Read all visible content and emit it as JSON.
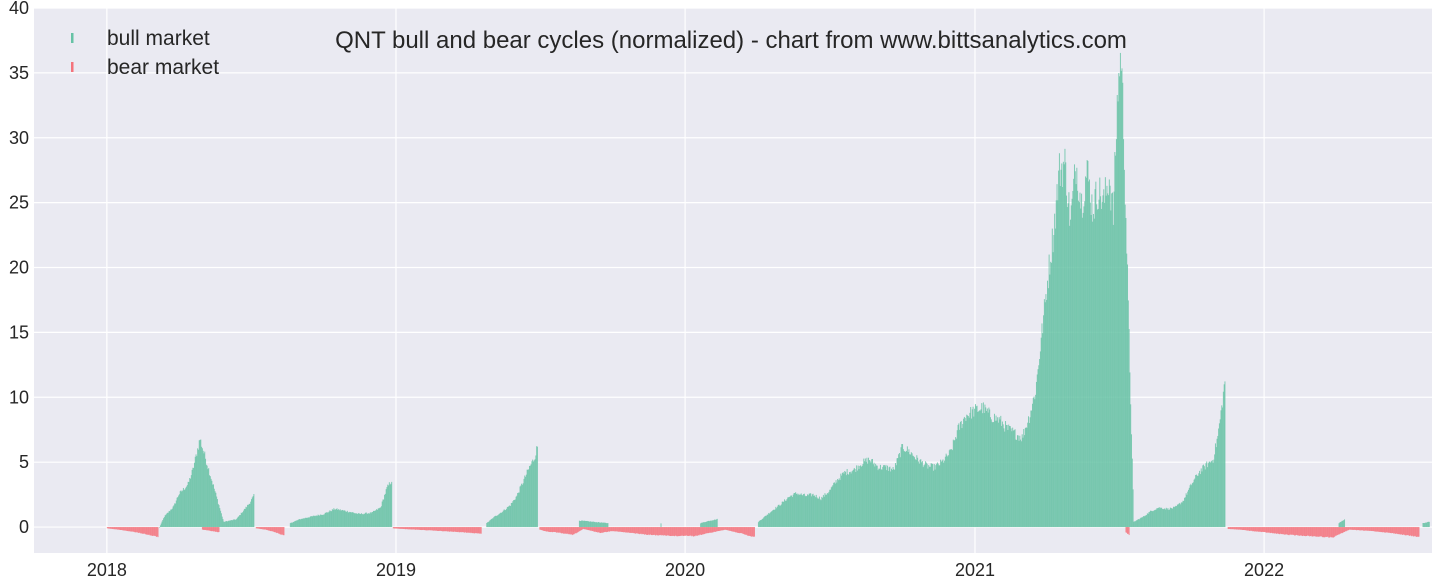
{
  "chart_data": {
    "type": "bar",
    "title": "QNT bull and bear cycles (normalized)  - chart from www.bittsanalytics.com",
    "xlabel": "",
    "ylabel": "",
    "xlim": [
      "2017-10-01",
      "2022-08-01"
    ],
    "ylim": [
      -2,
      40
    ],
    "y_ticks": [
      0,
      5,
      10,
      15,
      20,
      25,
      30,
      35,
      40
    ],
    "x_ticks": [
      {
        "date": "2018-01-01",
        "label": "2018"
      },
      {
        "date": "2019-01-01",
        "label": "2019"
      },
      {
        "date": "2020-01-01",
        "label": "2020"
      },
      {
        "date": "2021-01-01",
        "label": "2021"
      },
      {
        "date": "2022-01-01",
        "label": "2022"
      }
    ],
    "grid": true,
    "legend_position": "top-left",
    "colors": {
      "bull": "#66c2a5",
      "bear": "#f4737c",
      "plot_background": "#eaeaf2",
      "grid": "#ffffff"
    },
    "series": [
      {
        "name": "bull market",
        "key": "bull",
        "points": [
          [
            "2018-03-08",
            0.0
          ],
          [
            "2018-03-14",
            0.8
          ],
          [
            "2018-03-20",
            1.2
          ],
          [
            "2018-03-26",
            1.6
          ],
          [
            "2018-04-01",
            2.5
          ],
          [
            "2018-04-07",
            2.9
          ],
          [
            "2018-04-13",
            3.3
          ],
          [
            "2018-04-19",
            4.4
          ],
          [
            "2018-04-25",
            6.0
          ],
          [
            "2018-04-28",
            6.8
          ],
          [
            "2018-05-28",
            0.4
          ],
          [
            "2018-06-05",
            0.5
          ],
          [
            "2018-06-13",
            0.6
          ],
          [
            "2018-06-21",
            1.2
          ],
          [
            "2018-06-29",
            1.8
          ],
          [
            "2018-07-05",
            2.4
          ],
          [
            "2018-08-20",
            0.3
          ],
          [
            "2018-09-01",
            0.6
          ],
          [
            "2018-09-15",
            0.8
          ],
          [
            "2018-10-01",
            1.0
          ],
          [
            "2018-10-15",
            1.4
          ],
          [
            "2018-11-01",
            1.2
          ],
          [
            "2018-11-15",
            1.0
          ],
          [
            "2018-12-01",
            1.1
          ],
          [
            "2018-12-12",
            1.5
          ],
          [
            "2018-12-20",
            3.0
          ],
          [
            "2018-12-26",
            3.6
          ],
          [
            "2019-04-25",
            0.3
          ],
          [
            "2019-05-05",
            0.8
          ],
          [
            "2019-05-15",
            1.2
          ],
          [
            "2019-05-25",
            1.7
          ],
          [
            "2019-06-02",
            2.4
          ],
          [
            "2019-06-10",
            3.5
          ],
          [
            "2019-06-18",
            4.6
          ],
          [
            "2019-06-24",
            5.3
          ],
          [
            "2019-06-28",
            6.2
          ],
          [
            "2019-08-20",
            0.5
          ],
          [
            "2019-09-25",
            0.3
          ],
          [
            "2019-12-01",
            0.3
          ],
          [
            "2020-01-20",
            0.3
          ],
          [
            "2020-02-01",
            0.5
          ],
          [
            "2020-02-10",
            0.6
          ],
          [
            "2020-04-02",
            0.4
          ],
          [
            "2020-04-10",
            0.8
          ],
          [
            "2020-04-20",
            1.3
          ],
          [
            "2020-05-01",
            1.8
          ],
          [
            "2020-05-10",
            2.3
          ],
          [
            "2020-05-20",
            2.6
          ],
          [
            "2020-06-01",
            2.4
          ],
          [
            "2020-06-10",
            2.5
          ],
          [
            "2020-06-20",
            2.2
          ],
          [
            "2020-07-01",
            2.8
          ],
          [
            "2020-07-10",
            3.6
          ],
          [
            "2020-07-20",
            4.2
          ],
          [
            "2020-08-01",
            4.4
          ],
          [
            "2020-08-10",
            4.9
          ],
          [
            "2020-08-20",
            5.2
          ],
          [
            "2020-09-01",
            4.6
          ],
          [
            "2020-09-10",
            4.6
          ],
          [
            "2020-09-20",
            4.4
          ],
          [
            "2020-10-01",
            6.2
          ],
          [
            "2020-10-10",
            5.8
          ],
          [
            "2020-10-20",
            5.2
          ],
          [
            "2020-11-01",
            4.7
          ],
          [
            "2020-11-10",
            4.6
          ],
          [
            "2020-11-20",
            5.0
          ],
          [
            "2020-12-01",
            5.8
          ],
          [
            "2020-12-10",
            7.5
          ],
          [
            "2020-12-20",
            8.6
          ],
          [
            "2021-01-01",
            9.0
          ],
          [
            "2021-01-10",
            9.2
          ],
          [
            "2021-01-20",
            8.6
          ],
          [
            "2021-02-01",
            8.2
          ],
          [
            "2021-02-10",
            7.6
          ],
          [
            "2021-02-20",
            7.2
          ],
          [
            "2021-03-01",
            6.9
          ],
          [
            "2021-03-10",
            8.5
          ],
          [
            "2021-03-18",
            10.5
          ],
          [
            "2021-03-26",
            15.0
          ],
          [
            "2021-04-03",
            19.5
          ],
          [
            "2021-04-10",
            23.0
          ],
          [
            "2021-04-17",
            27.5
          ],
          [
            "2021-04-24",
            28.0
          ],
          [
            "2021-05-01",
            23.5
          ],
          [
            "2021-05-08",
            28.0
          ],
          [
            "2021-05-15",
            25.0
          ],
          [
            "2021-05-22",
            27.5
          ],
          [
            "2021-05-29",
            24.5
          ],
          [
            "2021-06-05",
            26.0
          ],
          [
            "2021-06-12",
            25.0
          ],
          [
            "2021-06-19",
            27.0
          ],
          [
            "2021-06-24",
            24.0
          ],
          [
            "2021-06-30",
            34.0
          ],
          [
            "2021-07-04",
            36.5
          ],
          [
            "2021-07-07",
            31.0
          ],
          [
            "2021-07-20",
            0.4
          ],
          [
            "2021-08-01",
            0.8
          ],
          [
            "2021-08-10",
            1.2
          ],
          [
            "2021-08-20",
            1.5
          ],
          [
            "2021-09-01",
            1.4
          ],
          [
            "2021-09-10",
            1.5
          ],
          [
            "2021-09-20",
            2.0
          ],
          [
            "2021-10-01",
            3.3
          ],
          [
            "2021-10-10",
            4.2
          ],
          [
            "2021-10-20",
            4.8
          ],
          [
            "2021-10-28",
            5.2
          ],
          [
            "2021-11-03",
            7.0
          ],
          [
            "2021-11-08",
            9.2
          ],
          [
            "2021-11-12",
            11.3
          ],
          [
            "2022-04-05",
            0.3
          ],
          [
            "2022-04-12",
            0.6
          ],
          [
            "2022-07-20",
            0.3
          ],
          [
            "2022-07-28",
            0.4
          ]
        ]
      },
      {
        "name": "bear market",
        "key": "bear",
        "points": [
          [
            "2018-01-01",
            -0.1
          ],
          [
            "2018-01-15",
            -0.2
          ],
          [
            "2018-02-01",
            -0.35
          ],
          [
            "2018-02-15",
            -0.5
          ],
          [
            "2018-03-01",
            -0.7
          ],
          [
            "2018-03-06",
            -0.75
          ],
          [
            "2018-05-01",
            -0.2
          ],
          [
            "2018-05-12",
            -0.3
          ],
          [
            "2018-05-22",
            -0.4
          ],
          [
            "2018-07-08",
            -0.1
          ],
          [
            "2018-07-20",
            -0.2
          ],
          [
            "2018-08-01",
            -0.4
          ],
          [
            "2018-08-12",
            -0.65
          ],
          [
            "2018-12-28",
            -0.1
          ],
          [
            "2019-01-10",
            -0.15
          ],
          [
            "2019-01-25",
            -0.2
          ],
          [
            "2019-02-10",
            -0.25
          ],
          [
            "2019-02-25",
            -0.3
          ],
          [
            "2019-03-10",
            -0.35
          ],
          [
            "2019-03-25",
            -0.4
          ],
          [
            "2019-04-05",
            -0.45
          ],
          [
            "2019-04-18",
            -0.5
          ],
          [
            "2019-07-01",
            -0.2
          ],
          [
            "2019-07-10",
            -0.35
          ],
          [
            "2019-07-20",
            -0.4
          ],
          [
            "2019-08-01",
            -0.5
          ],
          [
            "2019-08-12",
            -0.6
          ],
          [
            "2019-08-25",
            -0.15
          ],
          [
            "2019-09-05",
            -0.3
          ],
          [
            "2019-09-15",
            -0.45
          ],
          [
            "2019-10-01",
            -0.3
          ],
          [
            "2019-10-15",
            -0.4
          ],
          [
            "2019-11-01",
            -0.5
          ],
          [
            "2019-11-15",
            -0.6
          ],
          [
            "2019-12-10",
            -0.65
          ],
          [
            "2019-12-20",
            -0.7
          ],
          [
            "2020-01-01",
            -0.65
          ],
          [
            "2020-01-12",
            -0.7
          ],
          [
            "2020-02-20",
            -0.2
          ],
          [
            "2020-03-01",
            -0.35
          ],
          [
            "2020-03-12",
            -0.5
          ],
          [
            "2020-03-22",
            -0.7
          ],
          [
            "2020-03-28",
            -0.75
          ],
          [
            "2021-07-10",
            -0.4
          ],
          [
            "2021-07-14",
            -0.6
          ],
          [
            "2021-11-16",
            -0.15
          ],
          [
            "2021-12-01",
            -0.2
          ],
          [
            "2021-12-15",
            -0.3
          ],
          [
            "2022-01-01",
            -0.4
          ],
          [
            "2022-01-15",
            -0.5
          ],
          [
            "2022-02-01",
            -0.6
          ],
          [
            "2022-02-15",
            -0.65
          ],
          [
            "2022-03-01",
            -0.7
          ],
          [
            "2022-03-15",
            -0.75
          ],
          [
            "2022-03-28",
            -0.8
          ],
          [
            "2022-04-18",
            -0.2
          ],
          [
            "2022-05-01",
            -0.25
          ],
          [
            "2022-05-15",
            -0.3
          ],
          [
            "2022-06-01",
            -0.4
          ],
          [
            "2022-06-15",
            -0.5
          ],
          [
            "2022-07-01",
            -0.65
          ],
          [
            "2022-07-15",
            -0.75
          ]
        ]
      }
    ]
  }
}
